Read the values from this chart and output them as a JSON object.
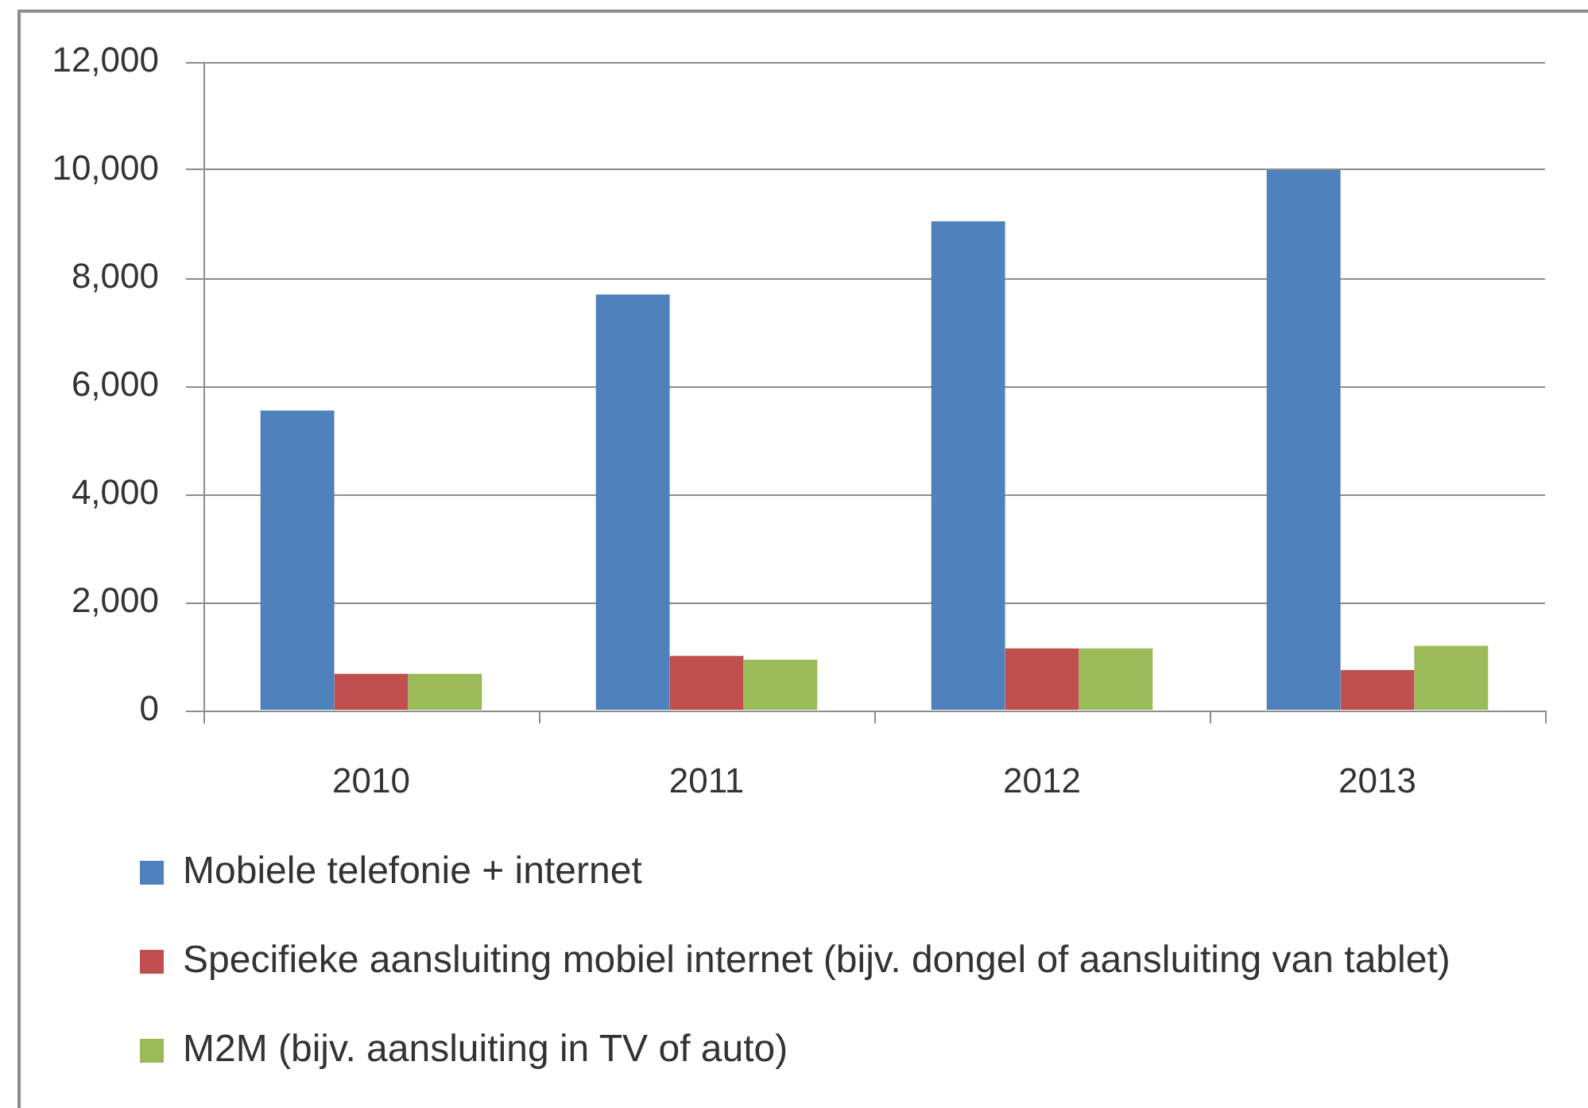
{
  "chart_data": {
    "type": "bar",
    "categories": [
      "2010",
      "2011",
      "2012",
      "2013"
    ],
    "series": [
      {
        "name": "Mobiele telefonie + internet",
        "color": "#4f81bd",
        "values": [
          5550,
          7700,
          9050,
          10000
        ]
      },
      {
        "name": "Specifieke aansluiting mobiel internet (bijv. dongel of aansluiting van tablet)",
        "color": "#c0504d",
        "values": [
          680,
          1010,
          1150,
          750
        ]
      },
      {
        "name": "M2M (bijv. aansluiting in TV of auto)",
        "color": "#9bbb59",
        "values": [
          680,
          940,
          1150,
          1200
        ]
      }
    ],
    "ylim": [
      0,
      12000
    ],
    "yticks": [
      0,
      {
        "value": 2000,
        "label": "2,000"
      },
      {
        "value": 4000,
        "label": "4,000"
      },
      {
        "value": 6000,
        "label": "6,000"
      },
      {
        "value": 8000,
        "label": "8,000"
      },
      {
        "value": 10000,
        "label": "10,000"
      },
      {
        "value": 12000,
        "label": "12,000"
      }
    ],
    "grid": "y",
    "legend": "bottom left"
  }
}
